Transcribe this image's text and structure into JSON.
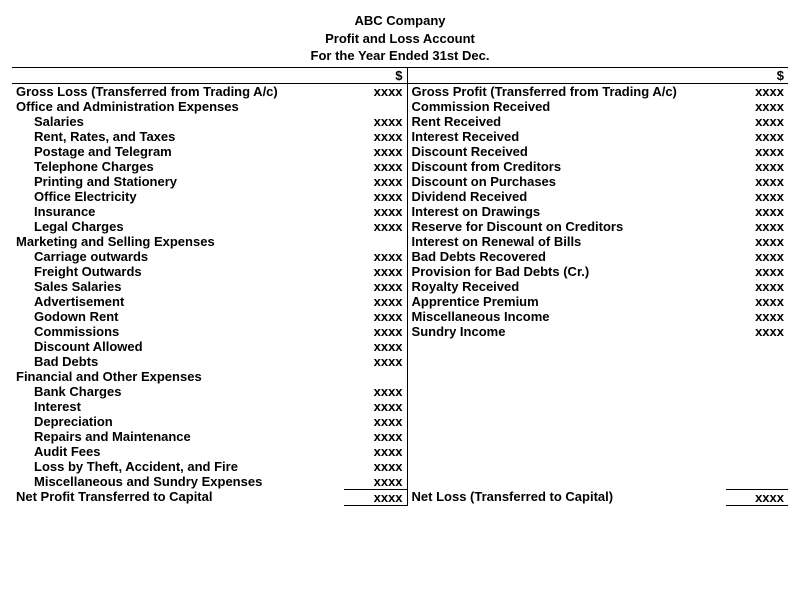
{
  "header": {
    "company": "ABC Company",
    "title": "Profit and Loss Account",
    "period": "For the Year Ended 31st Dec."
  },
  "currency": "$",
  "amount_placeholder": "xxxx",
  "left": [
    {
      "label": "Gross Loss (Transferred from Trading A/c)",
      "bold": true,
      "indent": 0,
      "has_amount": true
    },
    {
      "label": "Office and Administration Expenses",
      "bold": true,
      "indent": 0,
      "has_amount": false
    },
    {
      "label": "Salaries",
      "bold": true,
      "indent": 1,
      "has_amount": true
    },
    {
      "label": "Rent, Rates, and Taxes",
      "bold": true,
      "indent": 1,
      "has_amount": true
    },
    {
      "label": "Postage and Telegram",
      "bold": true,
      "indent": 1,
      "has_amount": true
    },
    {
      "label": "Telephone Charges",
      "bold": true,
      "indent": 1,
      "has_amount": true
    },
    {
      "label": "Printing and Stationery",
      "bold": true,
      "indent": 1,
      "has_amount": true
    },
    {
      "label": "Office Electricity",
      "bold": true,
      "indent": 1,
      "has_amount": true
    },
    {
      "label": "Insurance",
      "bold": true,
      "indent": 1,
      "has_amount": true
    },
    {
      "label": "Legal Charges",
      "bold": true,
      "indent": 1,
      "has_amount": true
    },
    {
      "label": "Marketing and Selling Expenses",
      "bold": true,
      "indent": 0,
      "has_amount": false
    },
    {
      "label": "Carriage outwards",
      "bold": true,
      "indent": 1,
      "has_amount": true
    },
    {
      "label": "Freight Outwards",
      "bold": true,
      "indent": 1,
      "has_amount": true
    },
    {
      "label": "Sales Salaries",
      "bold": true,
      "indent": 1,
      "has_amount": true
    },
    {
      "label": "Advertisement",
      "bold": true,
      "indent": 1,
      "has_amount": true
    },
    {
      "label": "Godown Rent",
      "bold": true,
      "indent": 1,
      "has_amount": true
    },
    {
      "label": "Commissions",
      "bold": true,
      "indent": 1,
      "has_amount": true
    },
    {
      "label": "Discount Allowed",
      "bold": true,
      "indent": 1,
      "has_amount": true
    },
    {
      "label": "Bad Debts",
      "bold": true,
      "indent": 1,
      "has_amount": true
    },
    {
      "label": "Financial and Other Expenses",
      "bold": true,
      "indent": 0,
      "has_amount": false
    },
    {
      "label": "Bank Charges",
      "bold": true,
      "indent": 1,
      "has_amount": true
    },
    {
      "label": "Interest",
      "bold": true,
      "indent": 1,
      "has_amount": true
    },
    {
      "label": "Depreciation",
      "bold": true,
      "indent": 1,
      "has_amount": true
    },
    {
      "label": "Repairs and Maintenance",
      "bold": true,
      "indent": 1,
      "has_amount": true
    },
    {
      "label": "Audit Fees",
      "bold": true,
      "indent": 1,
      "has_amount": true
    },
    {
      "label": "Loss by Theft, Accident, and Fire",
      "bold": true,
      "indent": 1,
      "has_amount": true
    },
    {
      "label": "Miscellaneous and Sundry Expenses",
      "bold": true,
      "indent": 1,
      "has_amount": true
    }
  ],
  "right": [
    {
      "label": "Gross Profit (Transferred from Trading A/c)",
      "bold": true,
      "has_amount": true
    },
    {
      "label": "Commission Received",
      "bold": true,
      "has_amount": true
    },
    {
      "label": "Rent Received",
      "bold": true,
      "has_amount": true
    },
    {
      "label": "Interest Received",
      "bold": true,
      "has_amount": true
    },
    {
      "label": "Discount Received",
      "bold": true,
      "has_amount": true
    },
    {
      "label": "Discount from Creditors",
      "bold": true,
      "has_amount": true
    },
    {
      "label": "Discount on Purchases",
      "bold": true,
      "has_amount": true
    },
    {
      "label": "Dividend Received",
      "bold": true,
      "has_amount": true
    },
    {
      "label": "Interest on Drawings",
      "bold": true,
      "has_amount": true
    },
    {
      "label": "Reserve for Discount on Creditors",
      "bold": true,
      "has_amount": true
    },
    {
      "label": "Interest on Renewal of Bills",
      "bold": true,
      "has_amount": true
    },
    {
      "label": "Bad Debts Recovered",
      "bold": true,
      "has_amount": true
    },
    {
      "label": "Provision for Bad Debts (Cr.)",
      "bold": true,
      "has_amount": true
    },
    {
      "label": "Royalty Received",
      "bold": true,
      "has_amount": true
    },
    {
      "label": "Apprentice Premium",
      "bold": true,
      "has_amount": true
    },
    {
      "label": "Miscellaneous Income",
      "bold": true,
      "has_amount": true
    },
    {
      "label": "Sundry Income",
      "bold": true,
      "has_amount": true
    }
  ],
  "totals": {
    "left_label": "Net Profit Transferred to Capital",
    "right_label": "Net Loss (Transferred to Capital)"
  }
}
